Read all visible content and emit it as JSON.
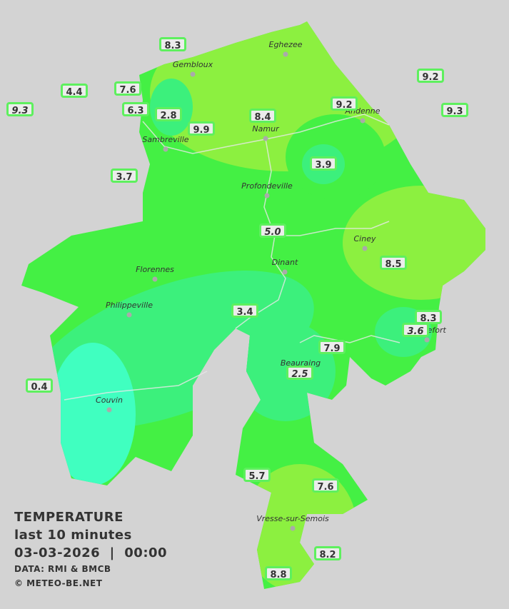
{
  "map": {
    "cities": [
      "Eghezee",
      "Gembloux",
      "Andenne",
      "Namur",
      "Sambreville",
      "Profondeville",
      "Ciney",
      "Dinant",
      "Florennes",
      "Philippeville",
      "Rochefort",
      "Beauraing",
      "Couvin",
      "Vresse-sur-Semois"
    ],
    "stations": [
      "8.3",
      "4.4",
      "7.6",
      "9.3",
      "6.3",
      "2.8",
      "9.9",
      "8.4",
      "9.2",
      "9.2",
      "9.3",
      "3.7",
      "3.9",
      "5.0",
      "8.5",
      "3.4",
      "8.3",
      "3.6",
      "7.9",
      "2.5",
      "0.4",
      "5.7",
      "7.6",
      "8.2",
      "8.8"
    ]
  },
  "legend": {
    "title": "TEMPERATURE",
    "period": "last 10 minutes",
    "datetime": "03-03-2026  |  00:00",
    "source": "DATA: RMI & BMCB",
    "copyright": "© METEO-BE.NET"
  }
}
